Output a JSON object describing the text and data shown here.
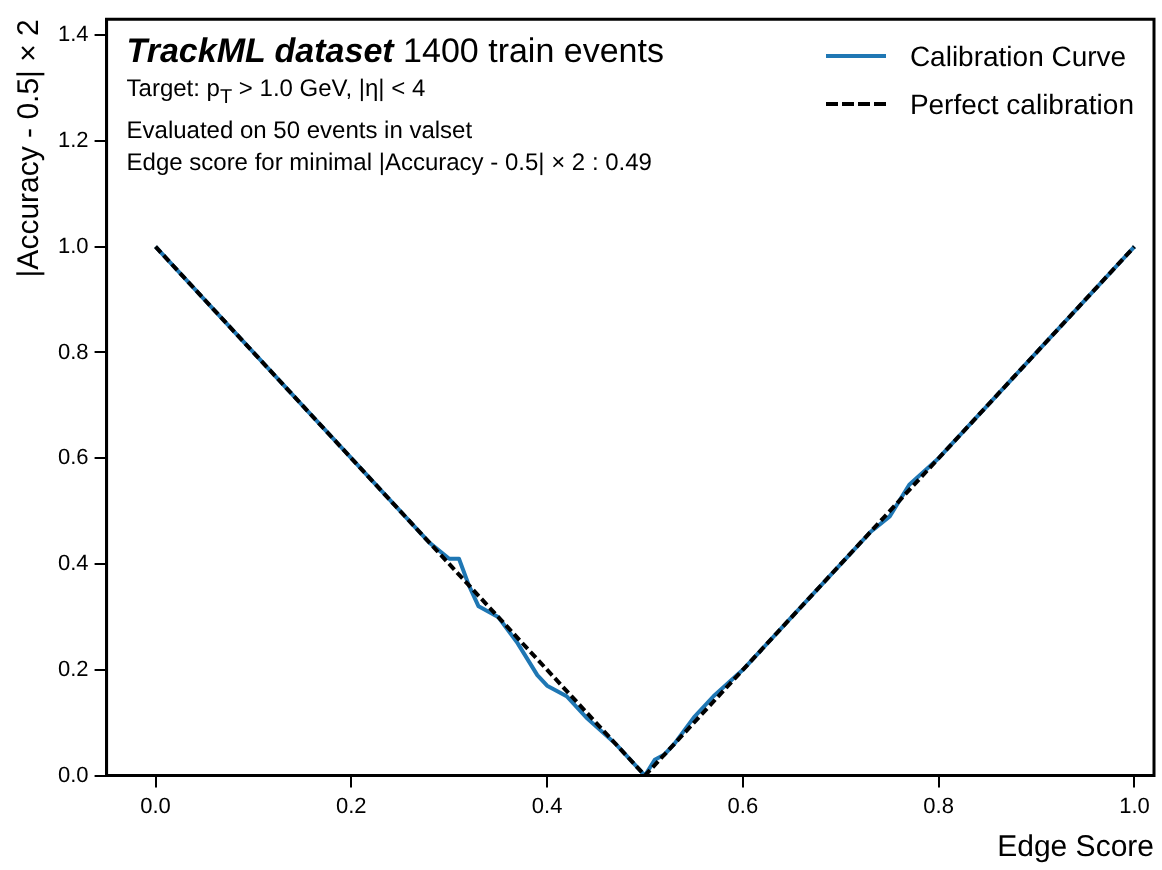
{
  "chart_data": {
    "type": "line",
    "title": "TrackML dataset",
    "subtitle": "1400 train events",
    "annotations": [
      "Target: p$_{T}$ > 1.0 GeV, |η| < 4",
      "Evaluated on 50 events in valset",
      "Edge score for minimal |Accuracy - 0.5| × 2 : 0.49"
    ],
    "xlabel": "Edge Score",
    "ylabel": "|Accuracy - 0.5| × 2",
    "xlim": [
      -0.05,
      1.02
    ],
    "xticks": [
      {
        "value": 0,
        "label": "0.0"
      },
      0.2,
      0.4,
      0.6,
      0.8,
      {
        "value": 1,
        "label": "1.0"
      }
    ],
    "ylim": [
      0,
      1.43
    ],
    "yticks": [
      {
        "value": 0,
        "label": "0.0"
      },
      0.2,
      0.4,
      0.6,
      0.8,
      {
        "value": 1,
        "label": "1.0"
      },
      1.2,
      1.4
    ],
    "grid": false,
    "legend": "top right",
    "marker": "none",
    "series": [
      {
        "name": "Calibration Curve",
        "color": "#1f77b4",
        "line_style": "solid",
        "x": [
          0,
          0.05,
          0.1,
          0.15,
          0.2,
          0.25,
          0.28,
          0.3,
          0.31,
          0.32,
          0.33,
          0.35,
          0.37,
          0.39,
          0.4,
          0.42,
          0.44,
          0.47,
          0.5,
          0.51,
          0.52,
          0.53,
          0.55,
          0.57,
          0.6,
          0.65,
          0.7,
          0.73,
          0.75,
          0.77,
          0.8,
          0.85,
          0.9,
          0.95,
          1
        ],
        "values": [
          1,
          0.9,
          0.8,
          0.7,
          0.6,
          0.5,
          0.44,
          0.41,
          0.41,
          0.36,
          0.32,
          0.3,
          0.25,
          0.19,
          0.17,
          0.15,
          0.11,
          0.06,
          0,
          0.03,
          0.04,
          0.06,
          0.11,
          0.15,
          0.2,
          0.3,
          0.4,
          0.46,
          0.49,
          0.55,
          0.6,
          0.7,
          0.8,
          0.9,
          1
        ]
      },
      {
        "name": "Perfect calibration",
        "color": "#000000",
        "line_style": "dashed",
        "x": [
          0,
          0.5,
          1
        ],
        "values": [
          1,
          0,
          1
        ]
      }
    ]
  }
}
